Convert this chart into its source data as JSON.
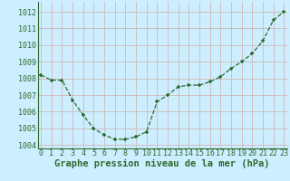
{
  "x": [
    0,
    1,
    2,
    3,
    4,
    5,
    6,
    7,
    8,
    9,
    10,
    11,
    12,
    13,
    14,
    15,
    16,
    17,
    18,
    19,
    20,
    21,
    22,
    23
  ],
  "y": [
    1008.2,
    1007.9,
    1007.9,
    1006.7,
    1005.8,
    1005.0,
    1004.6,
    1004.35,
    1004.35,
    1004.5,
    1004.8,
    1006.6,
    1007.0,
    1007.5,
    1007.6,
    1007.6,
    1007.8,
    1008.1,
    1008.6,
    1009.0,
    1009.5,
    1010.25,
    1011.5,
    1012.0
  ],
  "xlabel": "Graphe pression niveau de la mer (hPa)",
  "ylim": [
    1003.8,
    1012.6
  ],
  "yticks": [
    1004,
    1005,
    1006,
    1007,
    1008,
    1009,
    1010,
    1011,
    1012
  ],
  "xticks": [
    0,
    1,
    2,
    3,
    4,
    5,
    6,
    7,
    8,
    9,
    10,
    11,
    12,
    13,
    14,
    15,
    16,
    17,
    18,
    19,
    20,
    21,
    22,
    23
  ],
  "line_color": "#2d6a2d",
  "marker_color": "#2d6a2d",
  "bg_plot": "#cceeff",
  "bg_fig": "#cceeff",
  "grid_color": "#d0b8b8",
  "xlabel_color": "#2d6a2d",
  "tick_color": "#2d6a2d",
  "xlabel_fontsize": 7.5,
  "tick_fontsize": 6.0,
  "xlim": [
    -0.3,
    23.3
  ]
}
